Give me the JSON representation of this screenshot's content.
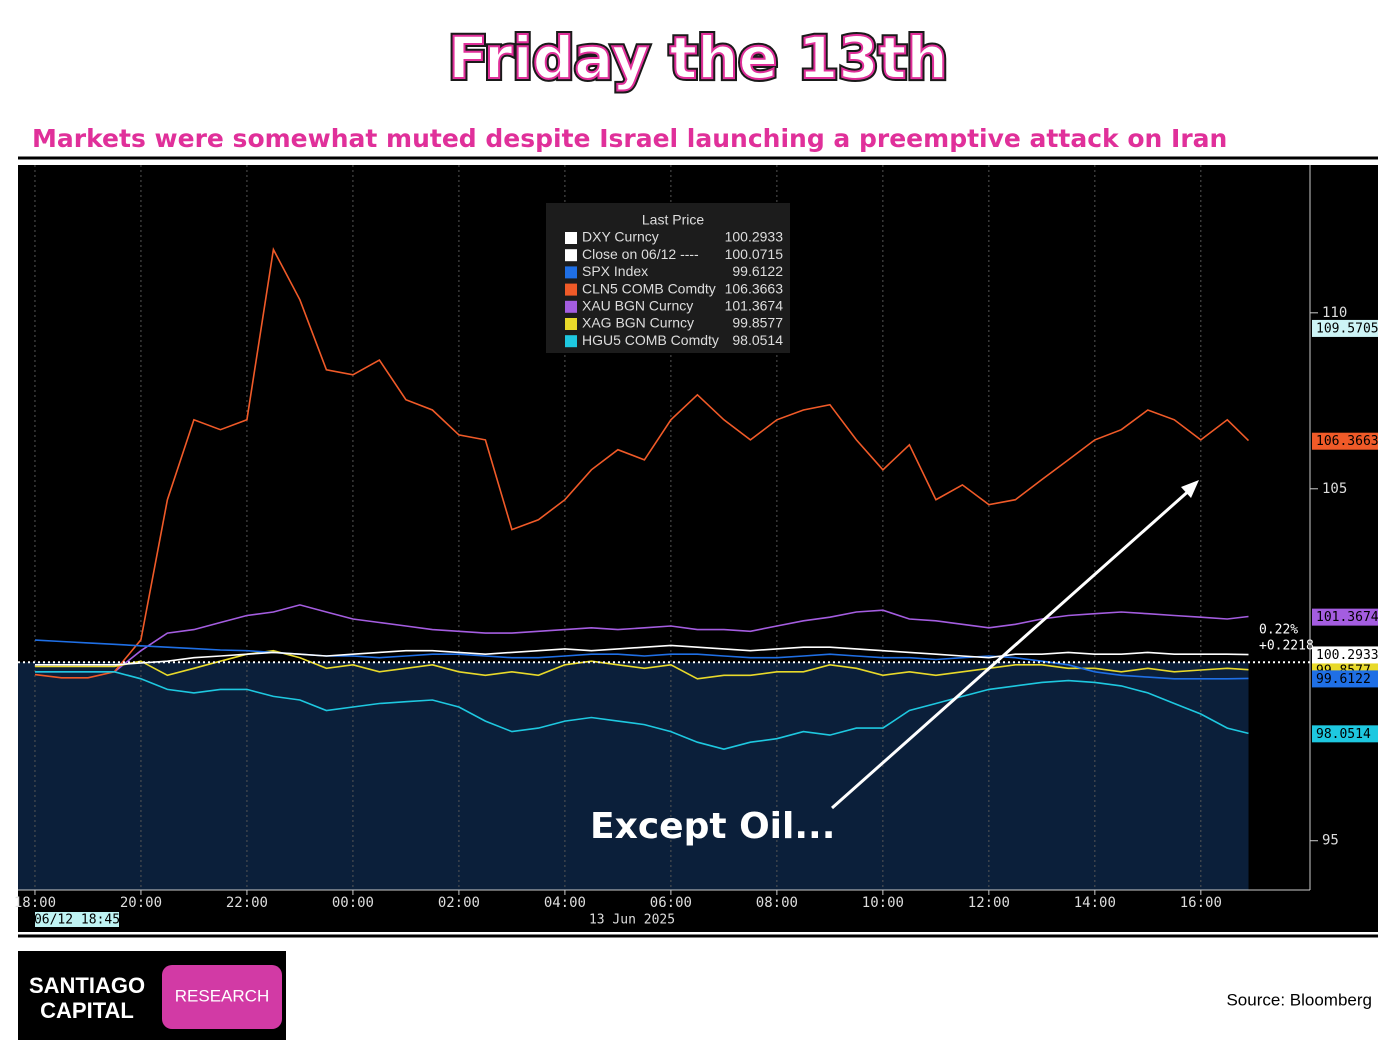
{
  "title": "Friday the 13th",
  "subtitle": "Markets were somewhat muted despite Israel launching a preemptive attack on Iran",
  "chart_data": {
    "type": "line",
    "legend_title": "Last Price",
    "x": [
      0,
      0.5,
      1,
      1.5,
      2,
      2.5,
      3,
      3.5,
      4,
      4.5,
      5,
      5.5,
      6,
      6.5,
      7,
      7.5,
      8,
      8.5,
      9,
      9.5,
      10,
      10.5,
      11,
      11.5,
      12,
      12.5,
      13,
      13.5,
      14,
      14.5,
      15,
      15.5,
      16,
      16.5,
      17,
      17.5,
      18,
      18.5,
      19,
      19.5,
      20,
      20.5,
      21,
      21.5,
      22,
      22.5,
      22.9
    ],
    "xlim": [
      -0.32,
      24.06
    ],
    "xticks": [
      {
        "value": 0,
        "label": "18:00"
      },
      {
        "value": 2,
        "label": "20:00"
      },
      {
        "value": 4,
        "label": "22:00"
      },
      {
        "value": 6,
        "label": "00:00"
      },
      {
        "value": 8,
        "label": "02:00"
      },
      {
        "value": 10,
        "label": "04:00"
      },
      {
        "value": 12,
        "label": "06:00"
      },
      {
        "value": 14,
        "label": "08:00"
      },
      {
        "value": 16,
        "label": "10:00"
      },
      {
        "value": 18,
        "label": "12:00"
      },
      {
        "value": 20,
        "label": "14:00"
      },
      {
        "value": 22,
        "label": "16:00"
      }
    ],
    "x_sublabels": [
      "06/12 18:45",
      "13 Jun 2025"
    ],
    "ylim": [
      93.6,
      114.2
    ],
    "yticks": [
      95,
      105,
      110
    ],
    "grid": "x",
    "series": [
      {
        "name": "DXY Curncy",
        "color": "#ffffff",
        "last_price": 100.2933,
        "values": [
          100.0,
          100.0,
          100.0,
          100.0,
          100.05,
          100.1,
          100.2,
          100.25,
          100.3,
          100.35,
          100.3,
          100.25,
          100.3,
          100.35,
          100.4,
          100.4,
          100.35,
          100.3,
          100.35,
          100.4,
          100.45,
          100.4,
          100.45,
          100.5,
          100.55,
          100.5,
          100.45,
          100.4,
          100.45,
          100.5,
          100.5,
          100.45,
          100.4,
          100.35,
          100.3,
          100.25,
          100.2,
          100.3,
          100.3,
          100.35,
          100.3,
          100.3,
          100.35,
          100.3,
          100.3,
          100.3,
          100.29
        ]
      },
      {
        "name": "Close on 06/12 ----",
        "color": "#ffffff",
        "last_price": 100.0715
      },
      {
        "name": "SPX Index",
        "color": "#1f6fe5",
        "last_price": 99.6122,
        "values": [
          100.7,
          100.66,
          100.62,
          100.58,
          100.54,
          100.5,
          100.46,
          100.42,
          100.4,
          100.35,
          100.3,
          100.25,
          100.25,
          100.2,
          100.25,
          100.3,
          100.3,
          100.25,
          100.2,
          100.2,
          100.25,
          100.3,
          100.3,
          100.25,
          100.3,
          100.3,
          100.25,
          100.2,
          100.2,
          100.25,
          100.3,
          100.25,
          100.2,
          100.2,
          100.15,
          100.2,
          100.25,
          100.2,
          100.1,
          100.0,
          99.8,
          99.7,
          99.65,
          99.6,
          99.6,
          99.6,
          99.6122
        ]
      },
      {
        "name": "CLN5 COMB Comdty",
        "color": "#f05a28",
        "last_price": 106.3663,
        "values": [
          99.72,
          99.63,
          99.63,
          99.8,
          100.71,
          104.69,
          106.96,
          106.68,
          106.96,
          111.8,
          110.37,
          108.38,
          108.24,
          108.66,
          107.53,
          107.24,
          106.53,
          106.39,
          103.84,
          104.12,
          104.69,
          105.54,
          106.11,
          105.82,
          106.96,
          107.67,
          106.96,
          106.39,
          106.96,
          107.24,
          107.39,
          106.39,
          105.54,
          106.25,
          104.69,
          105.11,
          104.55,
          104.69,
          105.26,
          105.82,
          106.39,
          106.68,
          107.24,
          106.96,
          106.39,
          106.96,
          106.37
        ]
      },
      {
        "name": "XAU BGN Curncy",
        "color": "#a45de0",
        "last_price": 101.3674,
        "values": [
          99.8,
          99.8,
          99.8,
          99.8,
          100.4,
          100.9,
          101.0,
          101.2,
          101.4,
          101.5,
          101.7,
          101.5,
          101.3,
          101.2,
          101.1,
          101.0,
          100.95,
          100.9,
          100.9,
          100.95,
          101.0,
          101.05,
          101.0,
          101.05,
          101.1,
          101.0,
          101.0,
          100.95,
          101.1,
          101.25,
          101.35,
          101.5,
          101.55,
          101.3,
          101.25,
          101.15,
          101.05,
          101.15,
          101.3,
          101.4,
          101.45,
          101.5,
          101.45,
          101.4,
          101.35,
          101.3,
          101.37
        ]
      },
      {
        "name": "XAG BGN Curncy",
        "color": "#e8d92a",
        "last_price": 99.8577,
        "values": [
          99.95,
          99.95,
          99.95,
          99.95,
          100.1,
          99.7,
          99.9,
          100.1,
          100.3,
          100.4,
          100.2,
          99.9,
          100.0,
          99.8,
          99.9,
          100.0,
          99.8,
          99.7,
          99.8,
          99.7,
          100.0,
          100.1,
          100.0,
          99.9,
          100.0,
          99.6,
          99.7,
          99.7,
          99.8,
          99.8,
          100.0,
          99.9,
          99.7,
          99.8,
          99.7,
          99.8,
          99.9,
          100.0,
          100.0,
          99.9,
          99.9,
          99.8,
          99.9,
          99.8,
          99.85,
          99.9,
          99.86
        ]
      },
      {
        "name": "HGU5 COMB Comdty",
        "color": "#1ec8e0",
        "last_price": 98.0514,
        "values": [
          99.8,
          99.8,
          99.8,
          99.8,
          99.6,
          99.3,
          99.2,
          99.3,
          99.3,
          99.1,
          99.0,
          98.7,
          98.8,
          98.9,
          98.95,
          99.0,
          98.8,
          98.4,
          98.1,
          98.2,
          98.4,
          98.5,
          98.4,
          98.3,
          98.1,
          97.8,
          97.6,
          97.8,
          97.9,
          98.1,
          98.0,
          98.2,
          98.2,
          98.7,
          98.9,
          99.1,
          99.3,
          99.4,
          99.5,
          99.55,
          99.5,
          99.4,
          99.2,
          98.9,
          98.6,
          98.2,
          98.05
        ]
      }
    ],
    "extra_tags": [
      {
        "value": 109.5705,
        "color": "#cdf4f6"
      }
    ],
    "change_labels": [
      "0.22%",
      "+0.2218"
    ],
    "annotation": "Except Oil..."
  },
  "footer": {
    "logo_line1": "SANTIAGO",
    "logo_line2": "CAPITAL",
    "logo_badge": "RESEARCH",
    "source": "Source:  Bloomberg"
  }
}
